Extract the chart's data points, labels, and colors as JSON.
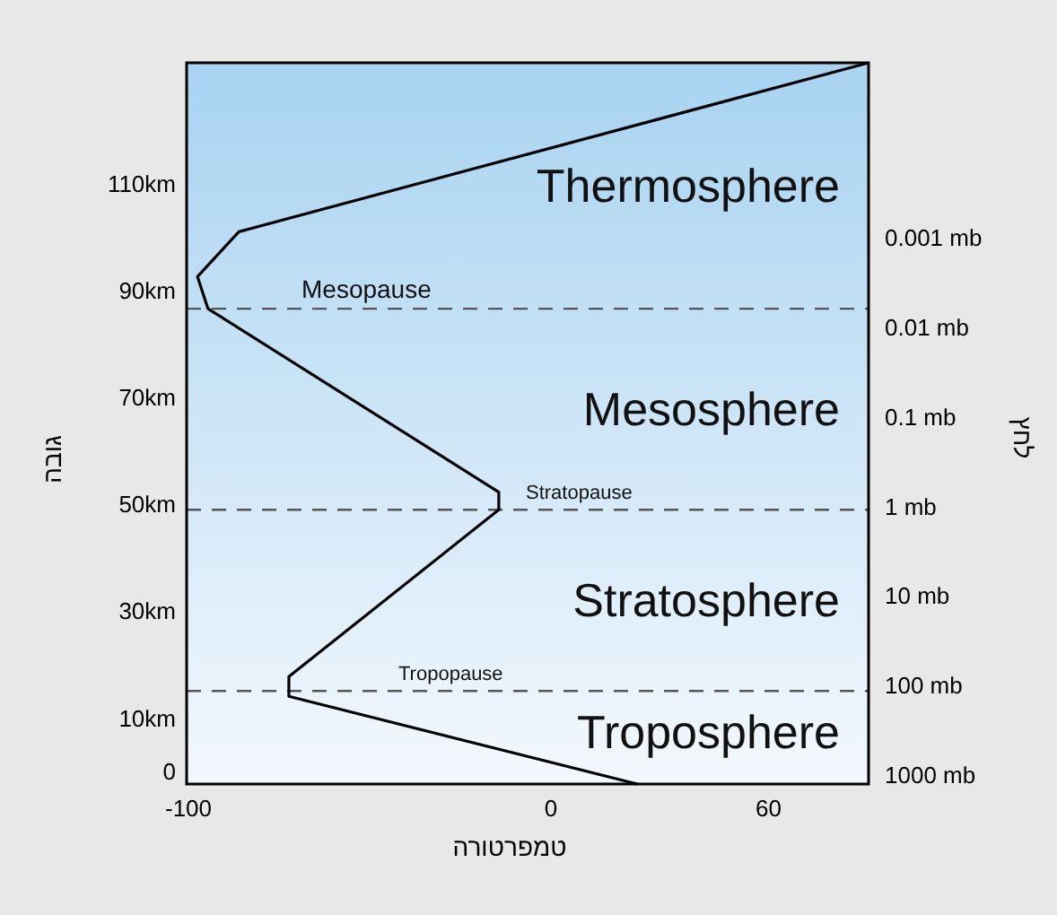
{
  "chart_data": {
    "type": "line",
    "xlabel": "טמפרטורה",
    "ylabel": "גובה",
    "y2label": "לחץ",
    "xlim": [
      -100.5,
      87.6
    ],
    "xticks": [
      -100,
      0,
      60
    ],
    "ylim": [
      -2.3,
      132.6
    ],
    "yticks": [
      0,
      {
        "value": 10,
        "label": "10km"
      },
      {
        "value": 30,
        "label": "30km"
      },
      {
        "value": 50,
        "label": "50km"
      },
      {
        "value": 70,
        "label": "70km"
      },
      {
        "value": 90,
        "label": "90km"
      },
      {
        "value": 110,
        "label": "110km"
      }
    ],
    "y2lim": [
      1260,
      1.1e-05
    ],
    "log": "y2",
    "y2ticks": [
      {
        "value": 1000,
        "label": "1000 mb"
      },
      {
        "value": 100,
        "label": "100 mb"
      },
      {
        "value": 10,
        "label": "10 mb"
      },
      {
        "value": 1,
        "label": "1 mb"
      },
      {
        "value": 0.1,
        "label": "0.1 mb"
      },
      {
        "value": 0.01,
        "label": "0.01 mb"
      },
      {
        "value": 0.001,
        "label": "0.001 mb"
      }
    ],
    "series": [
      {
        "color": "#000000",
        "x": [
          23.8,
          -72.3,
          -72.3,
          -14.4,
          -14.4,
          -94.6,
          -97.5,
          -86.1,
          87.6
        ],
        "values": [
          -2.3,
          14.1,
          17.8,
          49.0,
          52.3,
          86.6,
          92.6,
          101.0,
          132.6
        ]
      }
    ],
    "ref_lines": [
      {
        "axis": "y",
        "value": 86.6,
        "label": "Mesopause",
        "color": "#555555",
        "line_style": "dashed"
      },
      {
        "axis": "y",
        "value": 49.0,
        "label": "Stratopause",
        "color": "#555555",
        "line_style": "dashed"
      },
      {
        "axis": "y",
        "value": 15.1,
        "label": "Tropopause",
        "color": "#555555",
        "line_style": "dashed"
      }
    ],
    "annotations": [
      "Thermosphere",
      "Mesosphere",
      "Stratosphere",
      "Troposphere"
    ],
    "grid": false
  }
}
